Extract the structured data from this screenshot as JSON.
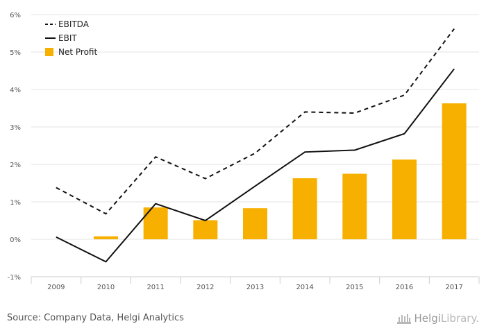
{
  "chart_data": {
    "type": "bar",
    "categories": [
      "2009",
      "2010",
      "2011",
      "2012",
      "2013",
      "2014",
      "2015",
      "2016",
      "2017"
    ],
    "series": [
      {
        "name": "EBITDA",
        "kind": "line",
        "style": "dashed",
        "color": "#111111",
        "values": [
          1.38,
          0.68,
          2.2,
          1.62,
          2.3,
          3.4,
          3.37,
          3.85,
          5.62
        ]
      },
      {
        "name": "EBIT",
        "kind": "line",
        "style": "solid",
        "color": "#111111",
        "values": [
          0.06,
          -0.6,
          0.95,
          0.5,
          1.42,
          2.33,
          2.38,
          2.82,
          4.55
        ]
      },
      {
        "name": "Net Profit",
        "kind": "bar",
        "color": "#f7b000",
        "values": [
          null,
          0.08,
          0.85,
          0.51,
          0.83,
          1.63,
          1.75,
          2.13,
          3.63
        ]
      }
    ],
    "y_ticks": [
      "6%",
      "5%",
      "4%",
      "3%",
      "2%",
      "1%",
      "0%",
      "-1%"
    ],
    "ylim": [
      -1,
      6
    ],
    "grid": true,
    "legend_position": "top-left"
  },
  "footer": {
    "source": "Source: Company Data, Helgi Analytics",
    "brand_name": "Helgi",
    "brand_suffix": "Library",
    "brand_dot": "."
  }
}
